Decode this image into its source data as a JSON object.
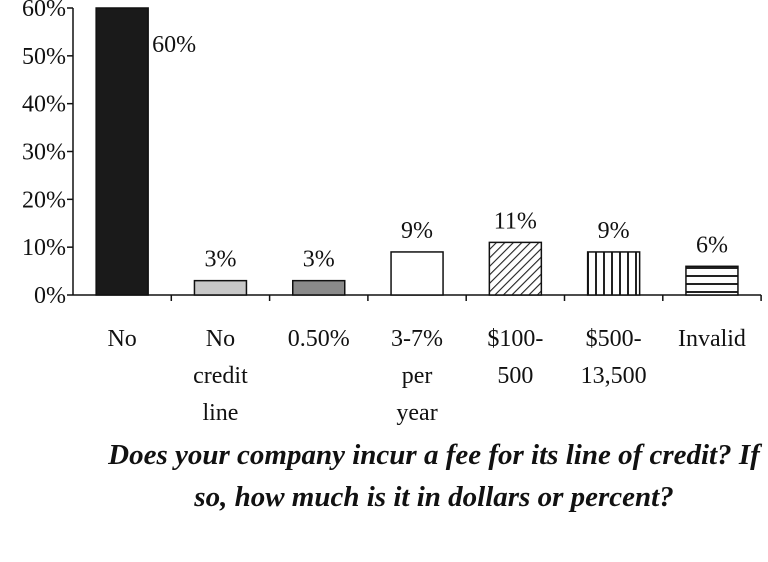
{
  "caption": "Does your company incur a fee for its line of credit? If so, how much is it in dollars or percent?",
  "chart_data": {
    "type": "bar",
    "categories": [
      [
        "No"
      ],
      [
        "No",
        "credit",
        "line"
      ],
      [
        "0.50%"
      ],
      [
        "3-7%",
        "per",
        "year"
      ],
      [
        "$100-",
        "500"
      ],
      [
        "$500-",
        "13,500"
      ],
      [
        "Invalid"
      ]
    ],
    "values": [
      60,
      3,
      3,
      9,
      11,
      9,
      6
    ],
    "data_labels": [
      "60%",
      "3%",
      "3%",
      "9%",
      "11%",
      "9%",
      "6%"
    ],
    "ylim": [
      0,
      60
    ],
    "yticks": [
      "0%",
      "10%",
      "20%",
      "30%",
      "40%",
      "50%",
      "60%"
    ],
    "grid": false,
    "legend": "none",
    "bar_colors": [
      "#1a1a1a",
      "#c8c8c8",
      "#8a8a8a",
      "#ffffff",
      "pattern-diagonal",
      "pattern-vertical",
      "pattern-horizontal"
    ]
  }
}
